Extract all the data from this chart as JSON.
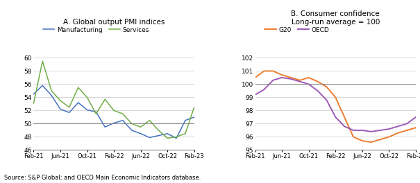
{
  "title_a": "A. Global output PMI indices",
  "title_b": "B. Consumer confidence",
  "subtitle_b": "Long-run average = 100",
  "source": "Source: S&P Global; and OECD Main Economic Indicators database.",
  "xtick_labels": [
    "Feb-21",
    "Jun-21",
    "Oct-21",
    "Feb-22",
    "Jun-22",
    "Oct-22",
    "Feb-23"
  ],
  "pmi_manufacturing": [
    54.5,
    55.8,
    54.3,
    52.2,
    51.7,
    53.2,
    52.1,
    51.8,
    49.5,
    50.1,
    50.5,
    49.0,
    48.5,
    47.9,
    48.2,
    48.5,
    47.8,
    50.5,
    51.0
  ],
  "pmi_services": [
    53.1,
    59.5,
    55.0,
    53.5,
    52.5,
    55.5,
    54.0,
    51.5,
    53.7,
    52.0,
    51.5,
    50.0,
    49.5,
    50.5,
    49.0,
    47.8,
    48.0,
    48.5,
    52.5
  ],
  "pmi_x": [
    0,
    1,
    2,
    3,
    4,
    5,
    6,
    7,
    8,
    9,
    10,
    11,
    12,
    13,
    14,
    15,
    16,
    17,
    18
  ],
  "pmi_ylim": [
    46,
    61
  ],
  "pmi_yticks": [
    46,
    48,
    50,
    52,
    54,
    56,
    58,
    60
  ],
  "pmi_hline": 50,
  "conf_g20": [
    100.5,
    101.0,
    101.0,
    100.7,
    100.5,
    100.3,
    100.5,
    100.2,
    99.8,
    99.0,
    97.5,
    96.0,
    95.7,
    95.6,
    95.8,
    96.0,
    96.3,
    96.5,
    96.7
  ],
  "conf_oecd": [
    99.2,
    99.6,
    100.3,
    100.5,
    100.4,
    100.2,
    100.0,
    99.5,
    98.8,
    97.5,
    96.8,
    96.5,
    96.5,
    96.4,
    96.5,
    96.6,
    96.8,
    97.0,
    97.5
  ],
  "conf_x": [
    0,
    1,
    2,
    3,
    4,
    5,
    6,
    7,
    8,
    9,
    10,
    11,
    12,
    13,
    14,
    15,
    16,
    17,
    18
  ],
  "conf_ylim": [
    95,
    102.5
  ],
  "conf_yticks": [
    95,
    96,
    97,
    98,
    99,
    100,
    101,
    102
  ],
  "conf_hline": 100,
  "xtick_positions": [
    0,
    3,
    6,
    9,
    12,
    15,
    18
  ],
  "color_manufacturing": "#4472C4",
  "color_services": "#70AD47",
  "color_g20": "#ED7D31",
  "color_oecd": "#9B59B6",
  "background_color": "#FFFFFF",
  "grid_color": "#C8C8C8",
  "hline_color": "#808080"
}
